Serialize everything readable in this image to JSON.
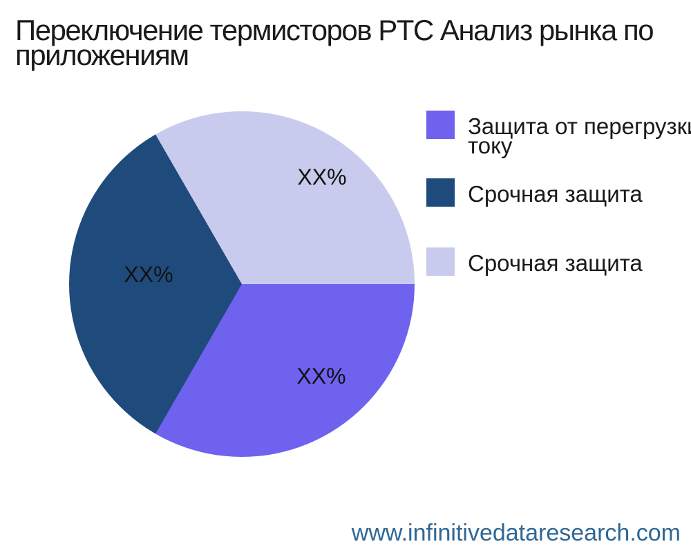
{
  "header": {
    "title": "Переключение термисторов PTC Анализ рынка по\nприложениям"
  },
  "chart_data": {
    "type": "pie",
    "title": "Переключение термисторов PTC Анализ рынка по приложениям",
    "legend_position": "right",
    "start_angle_deg": 0,
    "counterclockwise": false,
    "values_are_placeholders": true,
    "slices": [
      {
        "label": "Защита от перегрузки по\nтоку",
        "display_pct": "XX%",
        "value": 33.33,
        "color": "#6F62EE"
      },
      {
        "label": "Срочная защита",
        "display_pct": "XX%",
        "value": 33.34,
        "color": "#1F4B7C"
      },
      {
        "label": "Срочная защита",
        "display_pct": "XX%",
        "value": 33.33,
        "color": "#C9CBEE"
      }
    ]
  },
  "footer": {
    "watermark": "www.infinitivedataresearch.com"
  },
  "colors": {
    "background": "#FFFFFF",
    "title_text": "#1A1A1A",
    "slice_label_text": "#111111",
    "legend_text": "#1A1A1A",
    "watermark_text": "#2F6795"
  }
}
